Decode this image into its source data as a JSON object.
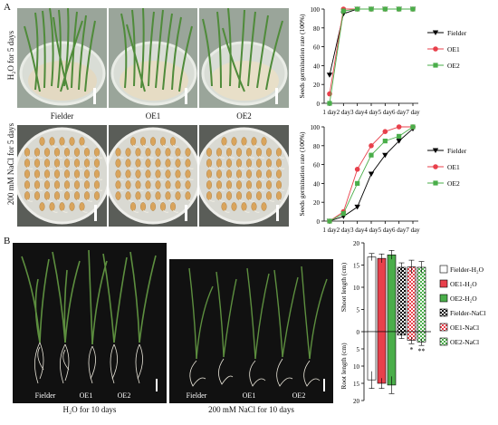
{
  "panel_a": {
    "letter": "A",
    "row1_label": "H₂O for 5 days",
    "row2_label": "200 mM NaCl for 5 days",
    "plate_labels": [
      "Fielder",
      "OE1",
      "OE2"
    ]
  },
  "panel_b": {
    "letter": "B",
    "photo1_caption": "H₂O for 10 days",
    "photo2_caption": "200 mM NaCl for 10 days",
    "plant_labels": [
      "Fielder",
      "OE1",
      "OE2"
    ],
    "photo2_plant_labels": [
      "Fielder",
      "OE1",
      "OE2"
    ]
  },
  "colors": {
    "fielder": "#000000",
    "oe1": "#e8404b",
    "oe2": "#4aae4a",
    "plate_bg_h2o": "#c7ccc4",
    "plate_bg_nacl": "#d9d9d2",
    "seed": "#d9a45c",
    "leaf": "#4f8b3a",
    "dark_bg": "#111111"
  },
  "chart_data": [
    {
      "type": "line",
      "ylabel": "Seeds germination rate (100%)",
      "categories": [
        "1 day",
        "2 day",
        "3 day",
        "4 day",
        "5 day",
        "6 day",
        "7 day"
      ],
      "ylim": [
        0,
        100
      ],
      "yticks": [
        "0",
        "20",
        "40",
        "60",
        "80",
        "100"
      ],
      "legend_position": "right",
      "series": [
        {
          "name": "Fielder",
          "values": [
            30,
            95,
            100,
            100,
            100,
            100,
            100
          ]
        },
        {
          "name": "OE1",
          "values": [
            10,
            100,
            100,
            100,
            100,
            100,
            100
          ]
        },
        {
          "name": "OE2",
          "values": [
            0,
            98,
            100,
            100,
            100,
            100,
            100
          ]
        }
      ]
    },
    {
      "type": "line",
      "ylabel": "Seeds germination rate (100%)",
      "categories": [
        "1 day",
        "2 day",
        "3 day",
        "4 day",
        "5 day",
        "6 day",
        "7 day"
      ],
      "ylim": [
        0,
        100
      ],
      "yticks": [
        "0",
        "20",
        "40",
        "60",
        "80",
        "100"
      ],
      "legend_position": "right",
      "series": [
        {
          "name": "Fielder",
          "values": [
            0,
            5,
            15,
            50,
            70,
            85,
            98
          ]
        },
        {
          "name": "OE1",
          "values": [
            0,
            10,
            55,
            80,
            95,
            100,
            100
          ]
        },
        {
          "name": "OE2",
          "values": [
            0,
            8,
            40,
            70,
            85,
            90,
            100
          ]
        }
      ]
    },
    {
      "type": "bar",
      "ylabel_top": "Shoot length (cm)",
      "ylabel_bottom": "Root length (cm)",
      "yticks_top": [
        "0",
        "5",
        "10",
        "15",
        "20"
      ],
      "yticks_bottom": [
        "5",
        "10",
        "15",
        "20"
      ],
      "legend_position": "right",
      "significance": [
        "*",
        "**"
      ],
      "series": [
        {
          "name": "Fielder-H₂O",
          "shoot": 16.8,
          "shoot_err": 0.8,
          "root": 14.0,
          "root_err": 2.5
        },
        {
          "name": "OE1-H₂O",
          "shoot": 16.5,
          "shoot_err": 1.0,
          "root": 15.0,
          "root_err": 1.5
        },
        {
          "name": "OE2-H₂O",
          "shoot": 17.3,
          "shoot_err": 1.0,
          "root": 15.5,
          "root_err": 2.5
        },
        {
          "name": "Fielder-NaCl",
          "shoot": 14.5,
          "shoot_err": 1.0,
          "root": 1.0,
          "root_err": 1.0
        },
        {
          "name": "OE1-NaCl",
          "shoot": 14.6,
          "shoot_err": 1.5,
          "root": 2.5,
          "root_err": 1.0
        },
        {
          "name": "OE2-NaCl",
          "shoot": 14.5,
          "shoot_err": 1.3,
          "root": 3.0,
          "root_err": 1.0
        }
      ]
    }
  ]
}
